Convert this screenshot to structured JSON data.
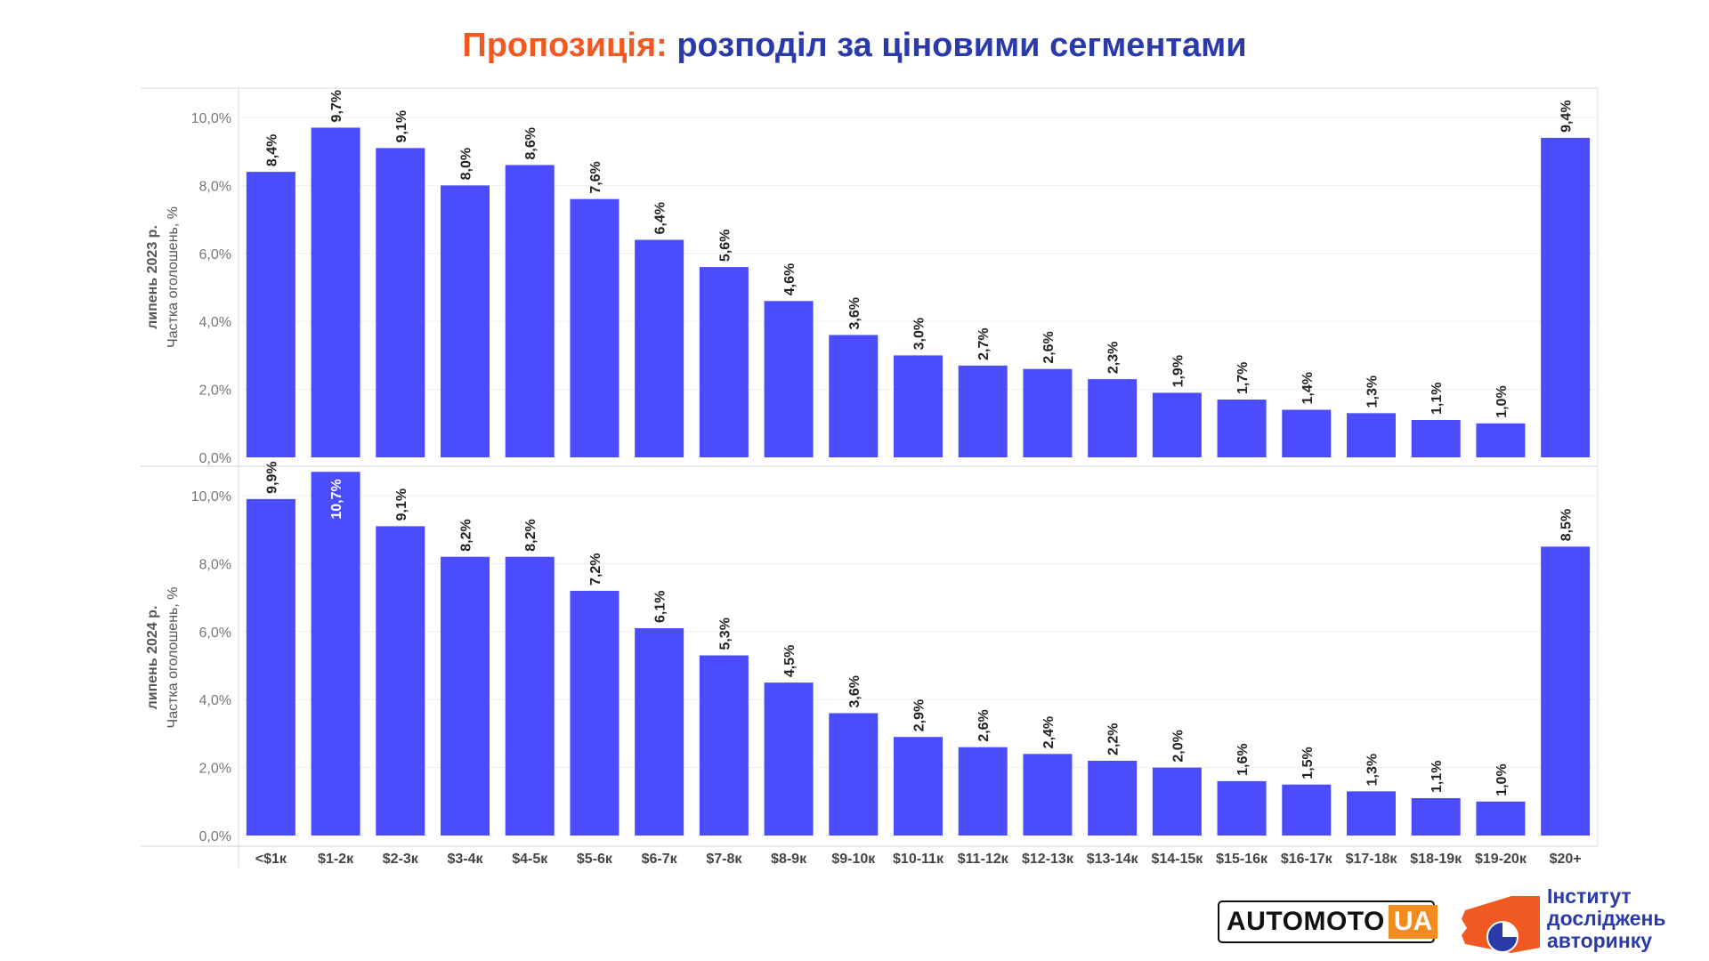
{
  "title": {
    "part1": "Пропозиція:",
    "part2": "розподіл за ціновими сегментами"
  },
  "colors": {
    "bar": "#4c4cff",
    "title_accent": "#f05a22",
    "title_main": "#2a3aa8"
  },
  "chart_data": [
    {
      "type": "bar",
      "row_label": "липень 2023 р.",
      "ylabel": "Частка оголошень, %",
      "ylim": [
        0,
        11.0
      ],
      "yticks": [
        "0,0%",
        "2,0%",
        "4,0%",
        "6,0%",
        "8,0%",
        "10,0%"
      ],
      "ytick_values": [
        0,
        2,
        4,
        6,
        8,
        10
      ],
      "categories": [
        "<$1к",
        "$1-2к",
        "$2-3к",
        "$3-4к",
        "$4-5к",
        "$5-6к",
        "$6-7к",
        "$7-8к",
        "$8-9к",
        "$9-10к",
        "$10-11к",
        "$11-12к",
        "$12-13к",
        "$13-14к",
        "$14-15к",
        "$15-16к",
        "$16-17к",
        "$17-18к",
        "$18-19к",
        "$19-20к",
        "$20+"
      ],
      "values": [
        8.4,
        9.7,
        9.1,
        8.0,
        8.6,
        7.6,
        6.4,
        5.6,
        4.6,
        3.6,
        3.0,
        2.7,
        2.6,
        2.3,
        1.9,
        1.7,
        1.4,
        1.3,
        1.1,
        1.0,
        9.4
      ],
      "labels": [
        "8,4%",
        "9,7%",
        "9,1%",
        "8,0%",
        "8,6%",
        "7,6%",
        "6,4%",
        "5,6%",
        "4,6%",
        "3,6%",
        "3,0%",
        "2,7%",
        "2,6%",
        "2,3%",
        "1,9%",
        "1,7%",
        "1,4%",
        "1,3%",
        "1,1%",
        "1,0%",
        "9,4%"
      ]
    },
    {
      "type": "bar",
      "row_label": "липень 2024 р.",
      "ylabel": "Частка оголошень, %",
      "ylim": [
        0,
        11.0
      ],
      "yticks": [
        "0,0%",
        "2,0%",
        "4,0%",
        "6,0%",
        "8,0%",
        "10,0%"
      ],
      "ytick_values": [
        0,
        2,
        4,
        6,
        8,
        10
      ],
      "categories": [
        "<$1к",
        "$1-2к",
        "$2-3к",
        "$3-4к",
        "$4-5к",
        "$5-6к",
        "$6-7к",
        "$7-8к",
        "$8-9к",
        "$9-10к",
        "$10-11к",
        "$11-12к",
        "$12-13к",
        "$13-14к",
        "$14-15к",
        "$15-16к",
        "$16-17к",
        "$17-18к",
        "$18-19к",
        "$19-20к",
        "$20+"
      ],
      "values": [
        9.9,
        10.7,
        9.1,
        8.2,
        8.2,
        7.2,
        6.1,
        5.3,
        4.5,
        3.6,
        2.9,
        2.6,
        2.4,
        2.2,
        2.0,
        1.6,
        1.5,
        1.3,
        1.1,
        1.0,
        8.5
      ],
      "labels": [
        "9,9%",
        "10,7%",
        "9,1%",
        "8,2%",
        "8,2%",
        "7,2%",
        "6,1%",
        "5,3%",
        "4,5%",
        "3,6%",
        "2,9%",
        "2,6%",
        "2,4%",
        "2,2%",
        "2,0%",
        "1,6%",
        "1,5%",
        "1,3%",
        "1,1%",
        "1,0%",
        "8,5%"
      ]
    }
  ],
  "logos": {
    "automoto_text": "AUTOMOTO",
    "automoto_ua": "UA",
    "institute_line1": "Інститут",
    "institute_line2": "досліджень",
    "institute_line3": "авторинку"
  }
}
